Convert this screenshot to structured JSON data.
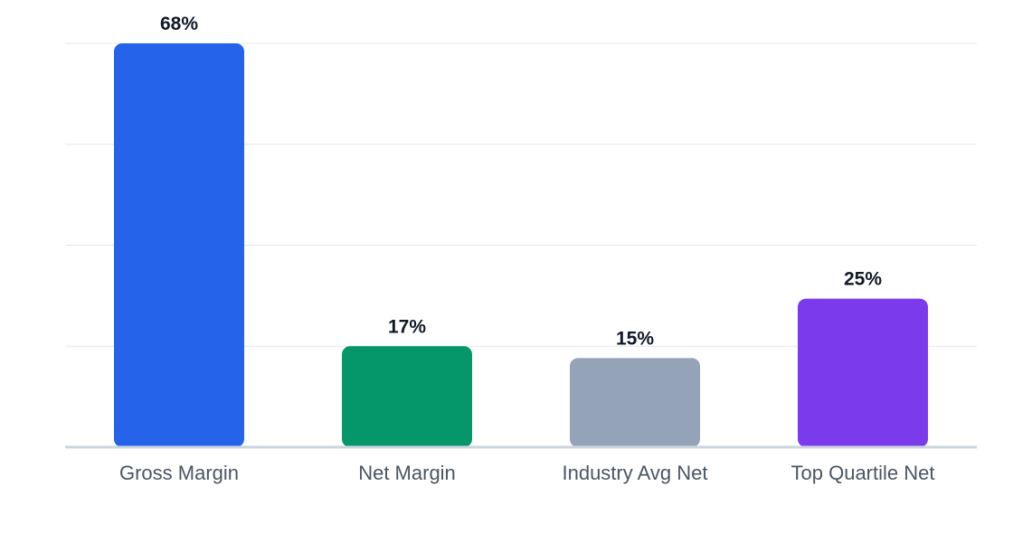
{
  "chart_data": {
    "type": "bar",
    "categories": [
      "Gross Margin",
      "Net Margin",
      "Industry Avg Net",
      "Top Quartile Net"
    ],
    "values": [
      68,
      17,
      15,
      25
    ],
    "value_suffix": "%",
    "colors": [
      "#2563eb",
      "#059669",
      "#94a3b8",
      "#7c3aed"
    ],
    "ylim": [
      0,
      68
    ],
    "gridlines": [
      0,
      17,
      34,
      51,
      68
    ],
    "grid": true,
    "legend": false,
    "title": "",
    "xlabel": "",
    "ylabel": ""
  }
}
